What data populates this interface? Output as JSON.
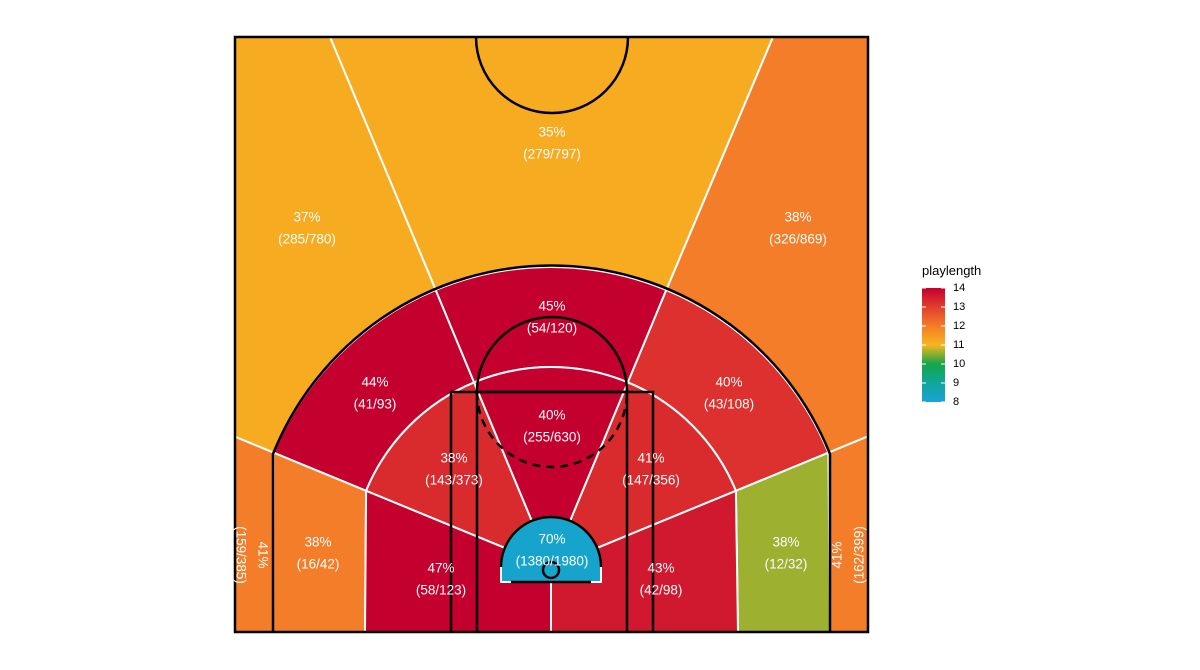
{
  "chart_data": {
    "type": "shot_zones",
    "legend": {
      "title": "playlength",
      "lim": [
        8,
        14
      ],
      "ticks": [
        8,
        9,
        10,
        11,
        12,
        13,
        14
      ],
      "colorscale": [
        {
          "value": 8,
          "color": "#19a3d8"
        },
        {
          "value": 9,
          "color": "#10a69a"
        },
        {
          "value": 10,
          "color": "#14a64a"
        },
        {
          "value": 11,
          "color": "#f8b61f"
        },
        {
          "value": 12,
          "color": "#f37d28"
        },
        {
          "value": 13,
          "color": "#e23d2e"
        },
        {
          "value": 14,
          "color": "#c4002f"
        }
      ]
    },
    "zones": [
      {
        "label": "35%",
        "count": "(279/797)",
        "playlength": 11.2
      },
      {
        "label": "37%",
        "count": "(285/780)",
        "playlength": 11.2
      },
      {
        "label": "38%",
        "count": "(326/869)",
        "playlength": 12.0
      },
      {
        "label": "41%",
        "count": "(159/385)",
        "playlength": 12.0
      },
      {
        "label": "41%",
        "count": "(162/399)",
        "playlength": 12.0
      },
      {
        "label": "44%",
        "count": "(41/93)",
        "playlength": 14
      },
      {
        "label": "45%",
        "count": "(54/120)",
        "playlength": 14
      },
      {
        "label": "40%",
        "count": "(43/108)",
        "playlength": 13.2
      },
      {
        "label": "38%",
        "count": "(16/42)",
        "playlength": 12.0
      },
      {
        "label": "38%",
        "count": "(12/32)",
        "playlength": 10.6
      },
      {
        "label": "38%",
        "count": "(143/373)",
        "playlength": 13.3
      },
      {
        "label": "40%",
        "count": "(255/630)",
        "playlength": 14
      },
      {
        "label": "41%",
        "count": "(147/356)",
        "playlength": 13.3
      },
      {
        "label": "47%",
        "count": "(58/123)",
        "playlength": 14
      },
      {
        "label": "43%",
        "count": "(42/98)",
        "playlength": 13.6
      },
      {
        "label": "70%",
        "count": "(1380/1980)",
        "playlength": 8.2
      }
    ]
  }
}
